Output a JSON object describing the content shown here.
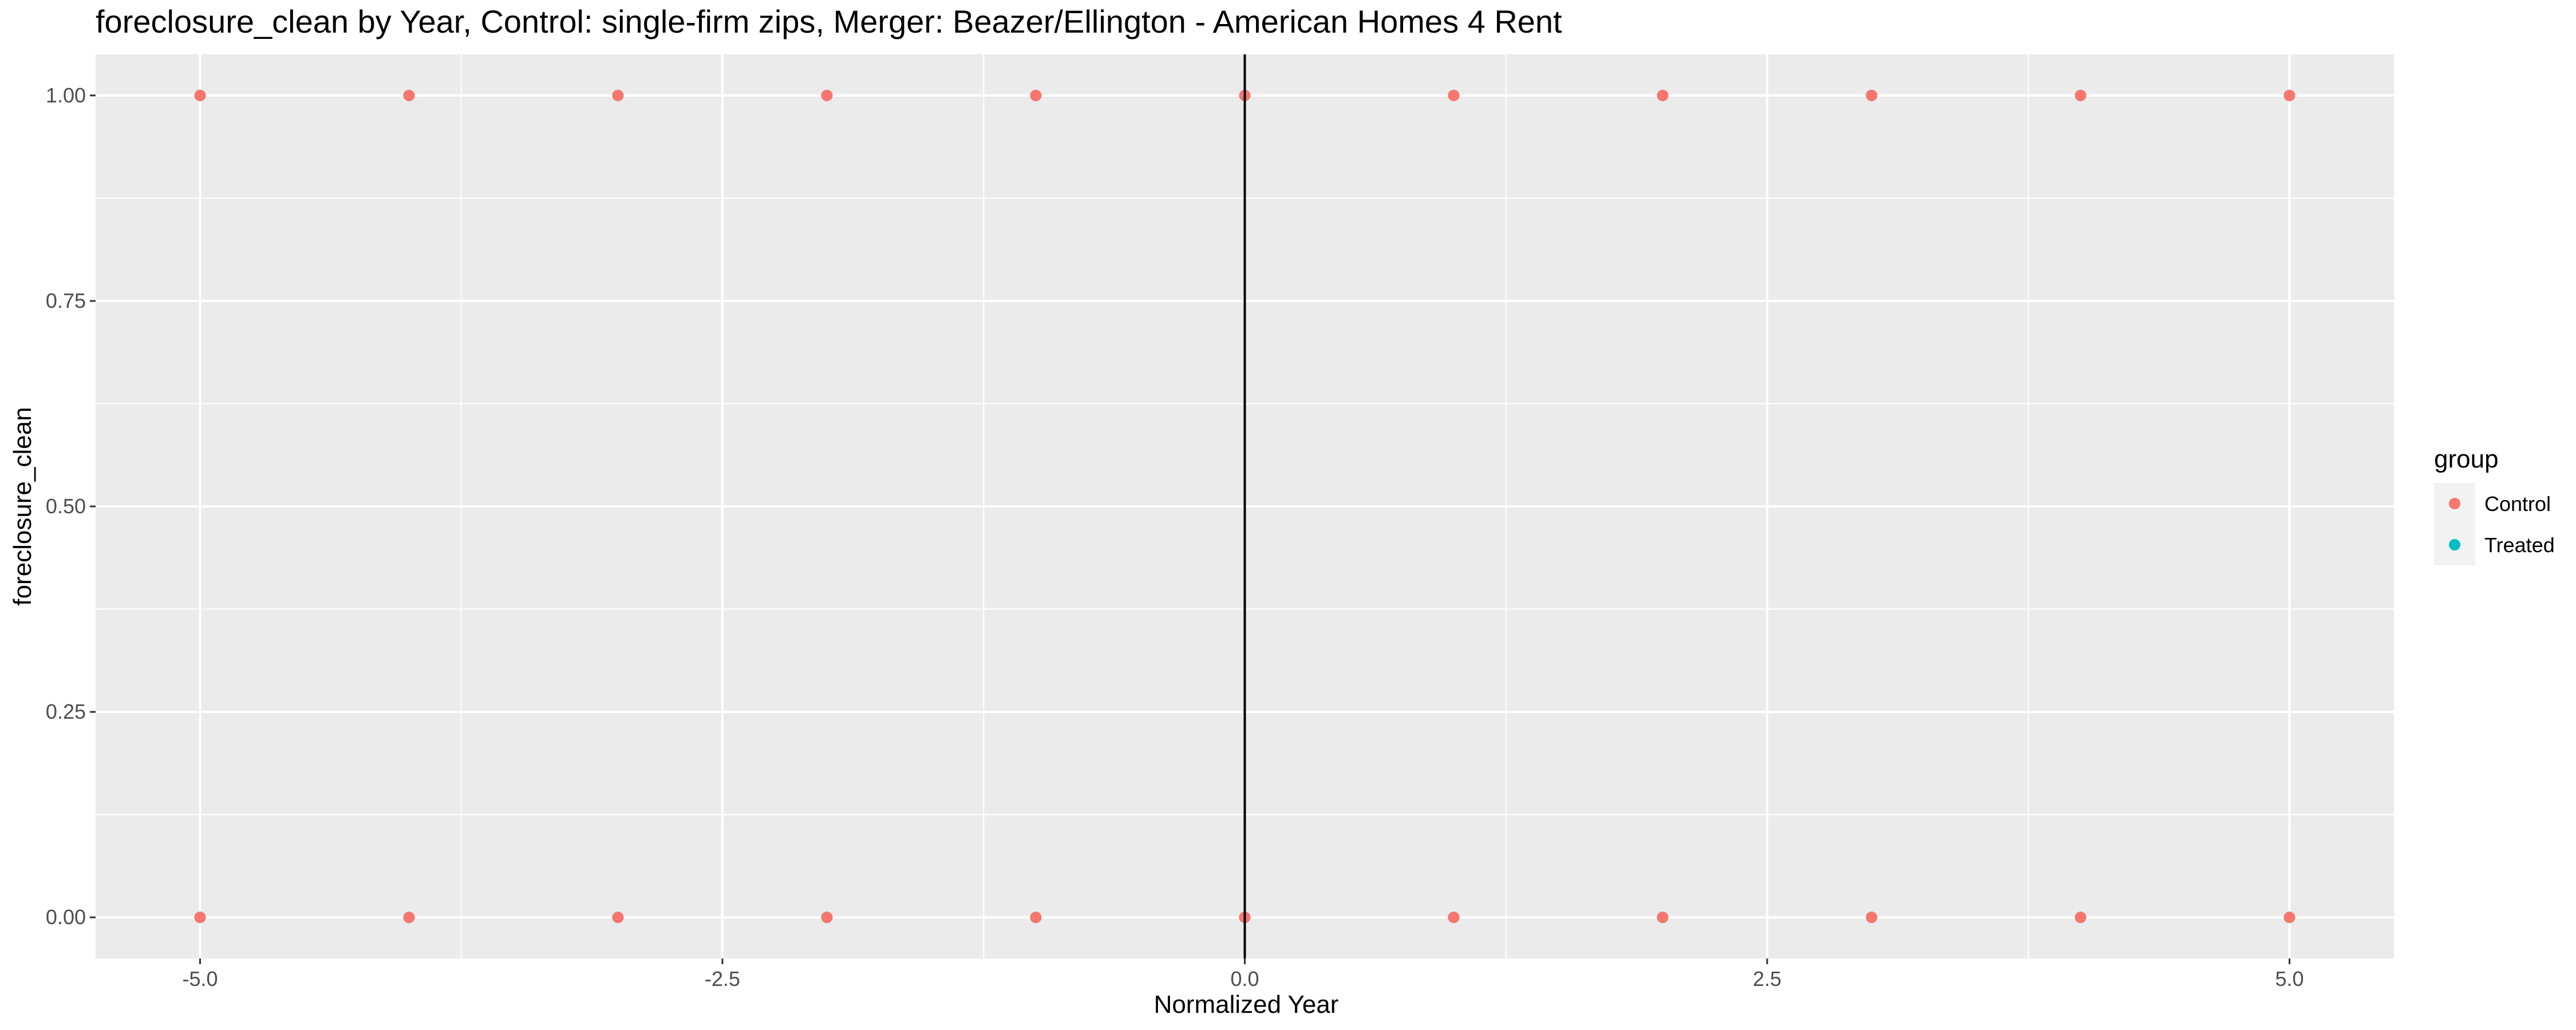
{
  "chart_data": {
    "type": "scatter",
    "title": "foreclosure_clean by Year, Control: single-firm zips, Merger: Beazer/Ellington - American Homes 4 Rent",
    "xlabel": "Normalized Year",
    "ylabel": "foreclosure_clean",
    "xlim": [
      -5.5,
      5.5
    ],
    "ylim": [
      -0.05,
      1.05
    ],
    "x_ticks": [
      -5.0,
      -2.5,
      0.0,
      2.5,
      5.0
    ],
    "x_tick_labels": [
      "-5.0",
      "-2.5",
      "0.0",
      "2.5",
      "5.0"
    ],
    "y_ticks": [
      0.0,
      0.25,
      0.5,
      0.75,
      1.0
    ],
    "y_tick_labels": [
      "0.00",
      "0.25",
      "0.50",
      "0.75",
      "1.00"
    ],
    "vline_x": 0,
    "grid": true,
    "legend": {
      "title": "group",
      "position": "right",
      "entries": [
        {
          "label": "Control",
          "color": "#F8766D"
        },
        {
          "label": "Treated",
          "color": "#00BFC4"
        }
      ]
    },
    "series": [
      {
        "name": "Control",
        "color": "#F8766D",
        "points": [
          {
            "x": -5,
            "y": 1
          },
          {
            "x": -4,
            "y": 1
          },
          {
            "x": -3,
            "y": 1
          },
          {
            "x": -2,
            "y": 1
          },
          {
            "x": -1,
            "y": 1
          },
          {
            "x": 0,
            "y": 1
          },
          {
            "x": 1,
            "y": 1
          },
          {
            "x": 2,
            "y": 1
          },
          {
            "x": 3,
            "y": 1
          },
          {
            "x": 4,
            "y": 1
          },
          {
            "x": 5,
            "y": 1
          },
          {
            "x": -5,
            "y": 0
          },
          {
            "x": -4,
            "y": 0
          },
          {
            "x": -3,
            "y": 0
          },
          {
            "x": -2,
            "y": 0
          },
          {
            "x": -1,
            "y": 0
          },
          {
            "x": 0,
            "y": 0
          },
          {
            "x": 1,
            "y": 0
          },
          {
            "x": 2,
            "y": 0
          },
          {
            "x": 3,
            "y": 0
          },
          {
            "x": 4,
            "y": 0
          },
          {
            "x": 5,
            "y": 0
          }
        ]
      },
      {
        "name": "Treated",
        "color": "#00BFC4",
        "points": [
          {
            "x": -5,
            "y": 1
          },
          {
            "x": -4,
            "y": 1
          },
          {
            "x": -3,
            "y": 1
          },
          {
            "x": -2,
            "y": 1
          },
          {
            "x": -1,
            "y": 1
          },
          {
            "x": 0,
            "y": 1
          },
          {
            "x": 1,
            "y": 1
          },
          {
            "x": 2,
            "y": 1
          },
          {
            "x": 3,
            "y": 1
          },
          {
            "x": 4,
            "y": 1
          },
          {
            "x": 5,
            "y": 1
          },
          {
            "x": -5,
            "y": 0
          },
          {
            "x": -4,
            "y": 0
          },
          {
            "x": -3,
            "y": 0
          },
          {
            "x": -2,
            "y": 0
          },
          {
            "x": -1,
            "y": 0
          },
          {
            "x": 0,
            "y": 0
          },
          {
            "x": 1,
            "y": 0
          },
          {
            "x": 2,
            "y": 0
          },
          {
            "x": 3,
            "y": 0
          },
          {
            "x": 4,
            "y": 0
          },
          {
            "x": 5,
            "y": 0
          }
        ]
      }
    ]
  }
}
